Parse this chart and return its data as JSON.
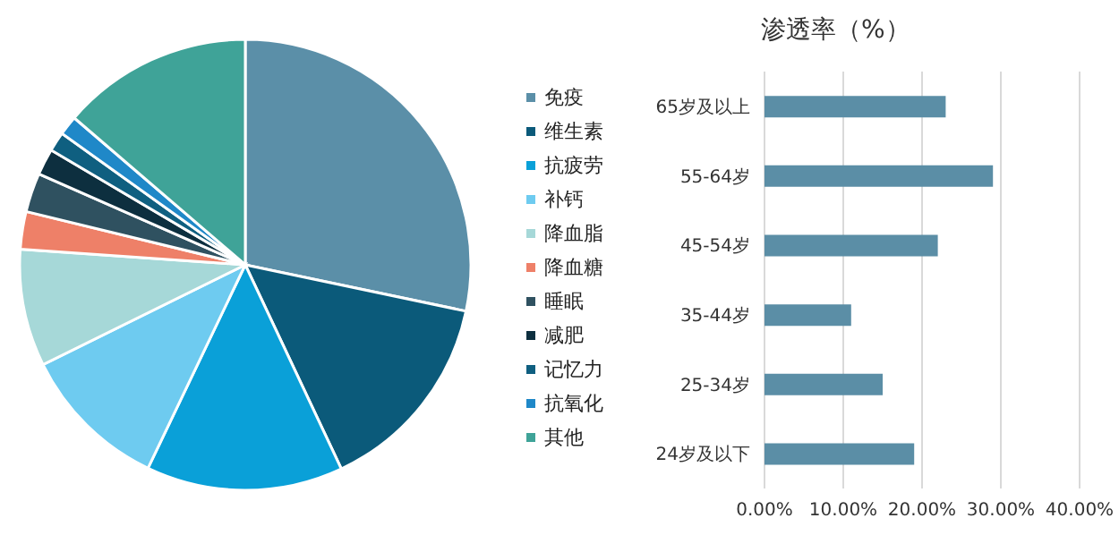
{
  "chart_data": [
    {
      "type": "pie",
      "categories": [
        "免疫",
        "维生素",
        "抗疲劳",
        "补钙",
        "降血脂",
        "降血糖",
        "睡眠",
        "减肥",
        "记忆力",
        "抗氧化",
        "其他"
      ],
      "values": [
        28.3,
        14.7,
        14.1,
        10.6,
        8.4,
        2.7,
        2.8,
        1.9,
        1.4,
        1.4,
        13.7
      ],
      "colors": [
        "#5b8fa8",
        "#0b5a7a",
        "#0aa0d8",
        "#6ecbf0",
        "#a6d8d8",
        "#ee8068",
        "#2f5160",
        "#0d2f3f",
        "#0f5f80",
        "#1f88c8",
        "#3fa398"
      ],
      "legend": "right"
    },
    {
      "type": "bar",
      "orientation": "horizontal",
      "title": "渗透率（%）",
      "categories": [
        "65岁及以上",
        "55-64岁",
        "45-54岁",
        "35-44岁",
        "25-34岁",
        "24岁及以下"
      ],
      "values": [
        23,
        29,
        22,
        11,
        15,
        19
      ],
      "color": "#5b8ea6",
      "xlim": [
        0,
        40
      ],
      "xticks": [
        {
          "value": 0,
          "label": "0.00%"
        },
        {
          "value": 10,
          "label": "10.00%"
        },
        {
          "value": 20,
          "label": "20.00%"
        },
        {
          "value": 30,
          "label": "30.00%"
        },
        {
          "value": 40,
          "label": "40.00%"
        }
      ],
      "grid": "x"
    }
  ]
}
